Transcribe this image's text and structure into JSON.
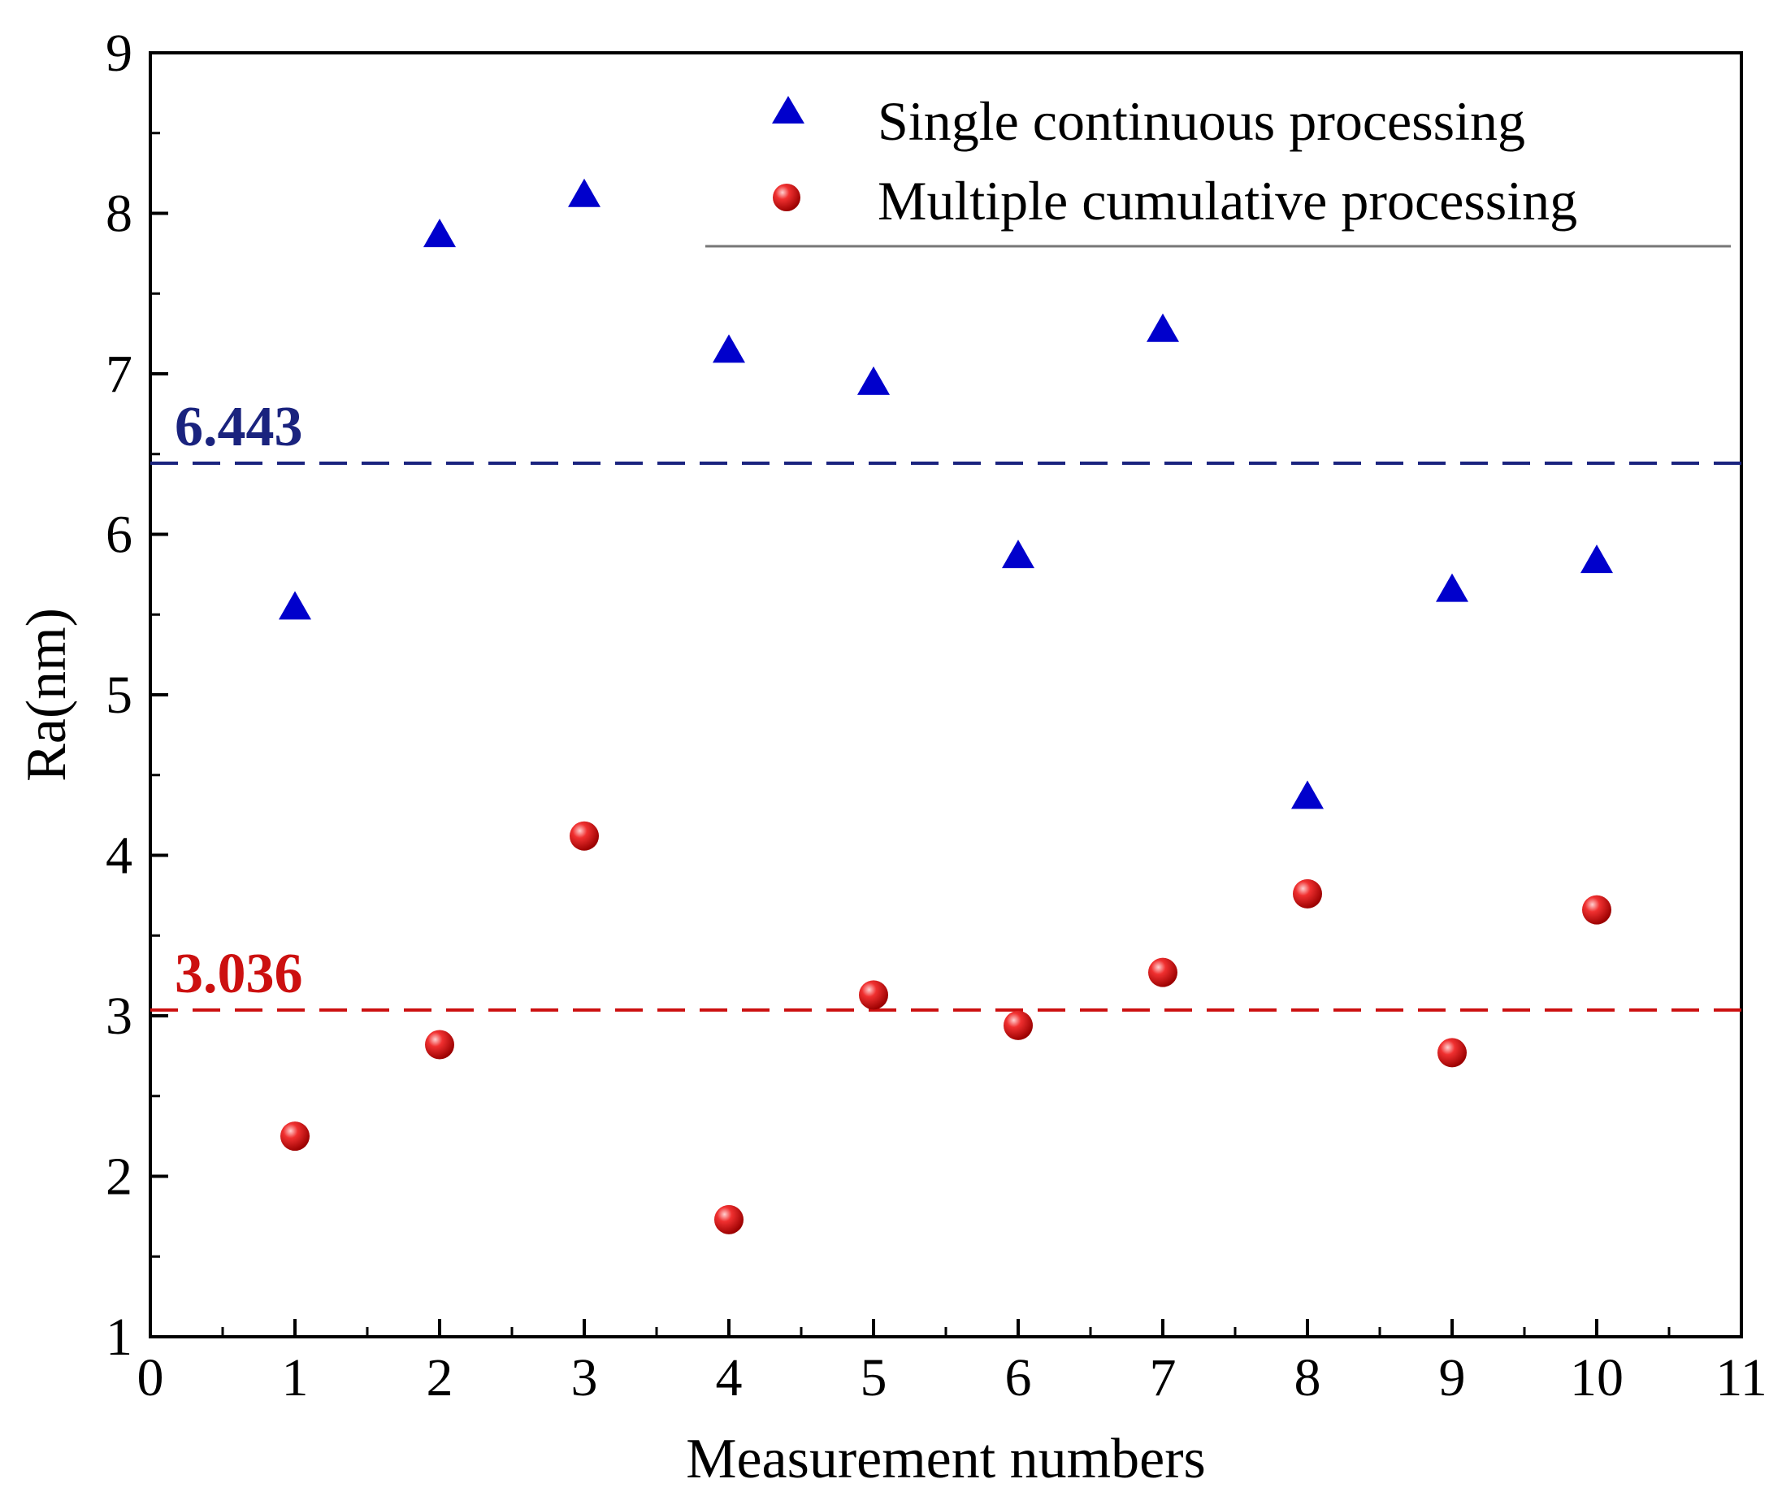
{
  "chart_data": {
    "type": "scatter",
    "title": "",
    "xlabel": "Measurement numbers",
    "ylabel": "Ra(nm)",
    "xlim": [
      0,
      11
    ],
    "ylim": [
      1,
      9
    ],
    "xticks": [
      "0",
      "1",
      "2",
      "3",
      "4",
      "5",
      "6",
      "7",
      "8",
      "9",
      "10",
      "11"
    ],
    "yticks": [
      "1",
      "2",
      "3",
      "4",
      "5",
      "6",
      "7",
      "8",
      "9"
    ],
    "legend_position": "top-right",
    "series": [
      {
        "name": "Single continuous processing",
        "marker": "triangle",
        "color": "#0000cc",
        "x": [
          1,
          2,
          3,
          4,
          5,
          6,
          7,
          8,
          9,
          10
        ],
        "values": [
          5.55,
          7.87,
          8.12,
          7.15,
          6.95,
          5.87,
          7.28,
          4.37,
          5.66,
          5.84
        ]
      },
      {
        "name": "Multiple cumulative processing",
        "marker": "sphere",
        "color": "#e01010",
        "x": [
          1,
          2,
          3,
          4,
          5,
          6,
          7,
          8,
          9,
          10
        ],
        "values": [
          2.25,
          2.82,
          4.12,
          1.73,
          3.13,
          2.94,
          3.27,
          3.76,
          2.77,
          3.66
        ]
      }
    ],
    "reference_lines": [
      {
        "value": 6.443,
        "label": "6.443",
        "color": "#1a237e"
      },
      {
        "value": 3.036,
        "label": "3.036",
        "color": "#cc1010"
      }
    ]
  }
}
